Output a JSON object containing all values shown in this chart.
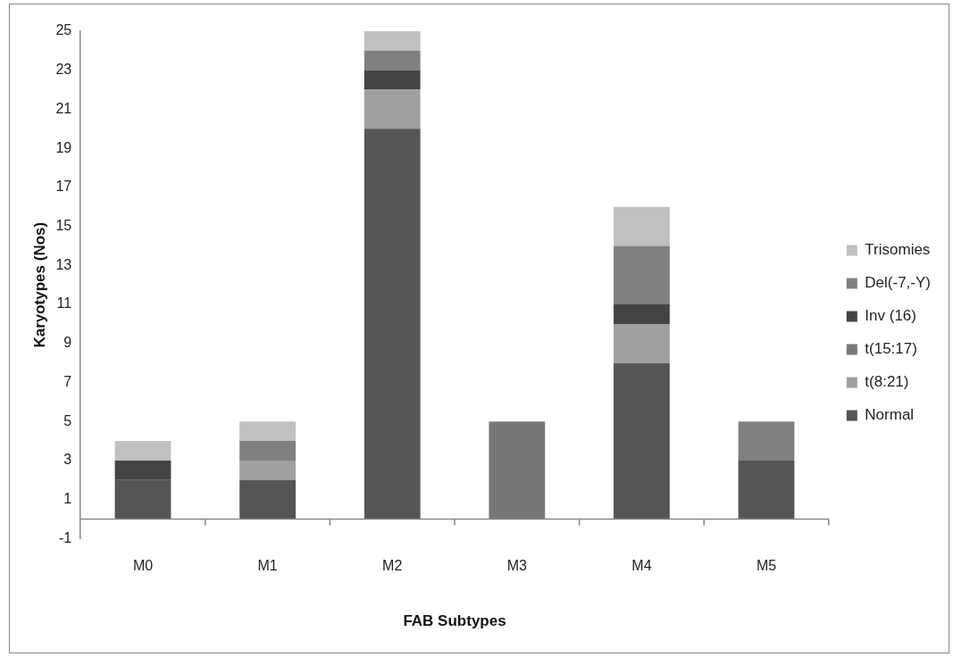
{
  "chart_data": {
    "type": "bar",
    "stacked": true,
    "xlabel": "FAB Subtypes",
    "ylabel": "Karyotypes (Nos)",
    "categories": [
      "M0",
      "M1",
      "M2",
      "M3",
      "M4",
      "M5"
    ],
    "series": [
      {
        "name": "Normal",
        "color": "#555555",
        "values": [
          2,
          2,
          20,
          0,
          8,
          3
        ]
      },
      {
        "name": "t(8:21)",
        "color": "#a0a0a0",
        "values": [
          0,
          1,
          2,
          0,
          2,
          0
        ]
      },
      {
        "name": "t(15:17)",
        "color": "#777777",
        "values": [
          0,
          0,
          0,
          5,
          0,
          0
        ]
      },
      {
        "name": "Inv (16)",
        "color": "#444444",
        "values": [
          1,
          0,
          1,
          0,
          1,
          0
        ]
      },
      {
        "name": "Del(-7,-Y)",
        "color": "#808080",
        "values": [
          0,
          1,
          1,
          0,
          3,
          2
        ]
      },
      {
        "name": "Trisomies",
        "color": "#c0c0c0",
        "values": [
          1,
          1,
          1,
          0,
          2,
          0
        ]
      }
    ],
    "ylim": [
      -1,
      25
    ],
    "yticks": [
      -1,
      1,
      3,
      5,
      7,
      9,
      11,
      13,
      15,
      17,
      19,
      21,
      23,
      25
    ],
    "grid": false,
    "legend": "right"
  }
}
